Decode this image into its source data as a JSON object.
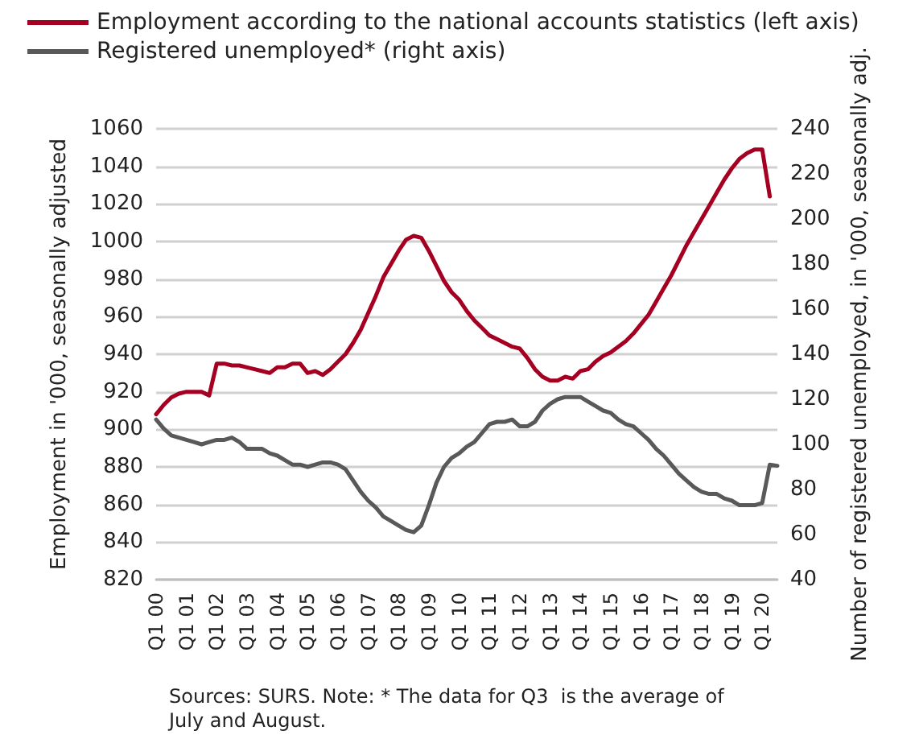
{
  "chart_data": {
    "type": "line",
    "ylabel": "Employment in '000, seasonally adjusted",
    "y2label": "Number of registered unemployed, in '000, seasonally adj.",
    "annotations": [
      "Sources: SURS. Note: * The data for Q3  is the average of July and August."
    ],
    "categories": [
      "Q1 00",
      null,
      null,
      null,
      "Q1 01",
      null,
      null,
      null,
      "Q1 02",
      null,
      null,
      null,
      "Q1 03",
      null,
      null,
      null,
      "Q1 04",
      null,
      null,
      null,
      "Q1 05",
      null,
      null,
      null,
      "Q1 06",
      null,
      null,
      null,
      "Q1 07",
      null,
      null,
      null,
      "Q1 08",
      null,
      null,
      null,
      "Q1 09",
      null,
      null,
      null,
      "Q1 10",
      null,
      null,
      null,
      "Q1 11",
      null,
      null,
      null,
      "Q1 12",
      null,
      null,
      null,
      "Q1 13",
      null,
      null,
      null,
      "Q1 14",
      null,
      null,
      null,
      "Q1 15",
      null,
      null,
      null,
      "Q1 16",
      null,
      null,
      null,
      "Q1 17",
      null,
      null,
      null,
      "Q1 18",
      null,
      null,
      null,
      "Q1 19",
      null,
      null,
      null,
      "Q1 20",
      null,
      null
    ],
    "series": [
      {
        "name": "Employment according to the national accounts statistics (left axis)",
        "color": "#a50021",
        "values": [
          908,
          913,
          917,
          919,
          920,
          920,
          920,
          918,
          935,
          935,
          934,
          934,
          933,
          932,
          931,
          930,
          933,
          933,
          935,
          935,
          930,
          931,
          929,
          932,
          936,
          940,
          946,
          953,
          962,
          971,
          981,
          988,
          995,
          1001,
          1003,
          1002,
          995,
          987,
          979,
          973,
          969,
          963,
          958,
          954,
          950,
          948,
          946,
          944,
          943,
          938,
          932,
          928,
          926,
          926,
          928,
          927,
          931,
          932,
          936,
          939,
          941,
          944,
          947,
          951,
          956,
          961,
          968,
          975,
          982,
          990,
          998,
          1005,
          1012,
          1019,
          1026,
          1033,
          1039,
          1044,
          1047,
          1049,
          1049,
          1024,
          null
        ]
      },
      {
        "name": "Registered unemployed* (right axis)",
        "color": "#595959",
        "axis": "y2",
        "values": [
          111,
          107,
          104,
          103,
          102,
          101,
          100,
          101,
          102,
          102,
          103,
          101,
          98,
          98,
          98,
          96,
          95,
          93,
          91,
          91,
          90,
          91,
          92,
          92,
          91,
          89,
          84,
          79,
          75,
          72,
          68,
          66,
          64,
          62,
          61,
          64,
          73,
          83,
          90,
          94,
          96,
          99,
          101,
          105,
          109,
          110,
          110,
          111,
          108,
          108,
          110,
          115,
          118,
          120,
          121,
          121,
          121,
          119,
          117,
          115,
          114,
          111,
          109,
          108,
          105,
          102,
          98,
          95,
          91,
          87,
          84,
          81,
          79,
          78,
          78,
          76,
          75,
          73,
          73,
          73,
          74,
          91,
          90.5
        ]
      }
    ],
    "ylim": [
      820,
      1060
    ],
    "yticks": [
      820,
      840,
      860,
      880,
      900,
      920,
      940,
      960,
      980,
      1000,
      1020,
      1040,
      1060
    ],
    "y2lim": [
      40,
      240
    ],
    "y2ticks": [
      40,
      60,
      80,
      100,
      120,
      140,
      160,
      180,
      200,
      220,
      240
    ],
    "grid": "y",
    "legend": "top left",
    "marker": "none",
    "line_style": "solid"
  }
}
